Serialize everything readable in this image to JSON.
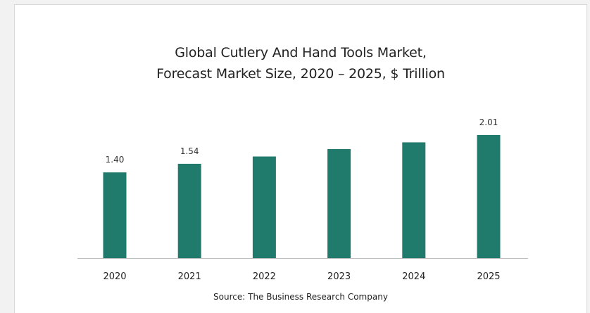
{
  "chart_data": {
    "type": "bar",
    "title_lines": [
      "Global Cutlery And Hand Tools Market,",
      "Forecast Market Size, 2020 – 2025, $ Trillion"
    ],
    "categories": [
      "2020",
      "2021",
      "2022",
      "2023",
      "2024",
      "2025"
    ],
    "values": [
      1.4,
      1.54,
      1.66,
      1.78,
      1.89,
      2.01
    ],
    "data_labels": [
      "1.40",
      "1.54",
      "",
      "",
      "",
      "2.01"
    ],
    "ylim": [
      0,
      2.01
    ],
    "grid": false,
    "bar_color": "#217b6c",
    "axis_color": "#bfbfbf"
  },
  "source": "Source: The Business Research Company"
}
